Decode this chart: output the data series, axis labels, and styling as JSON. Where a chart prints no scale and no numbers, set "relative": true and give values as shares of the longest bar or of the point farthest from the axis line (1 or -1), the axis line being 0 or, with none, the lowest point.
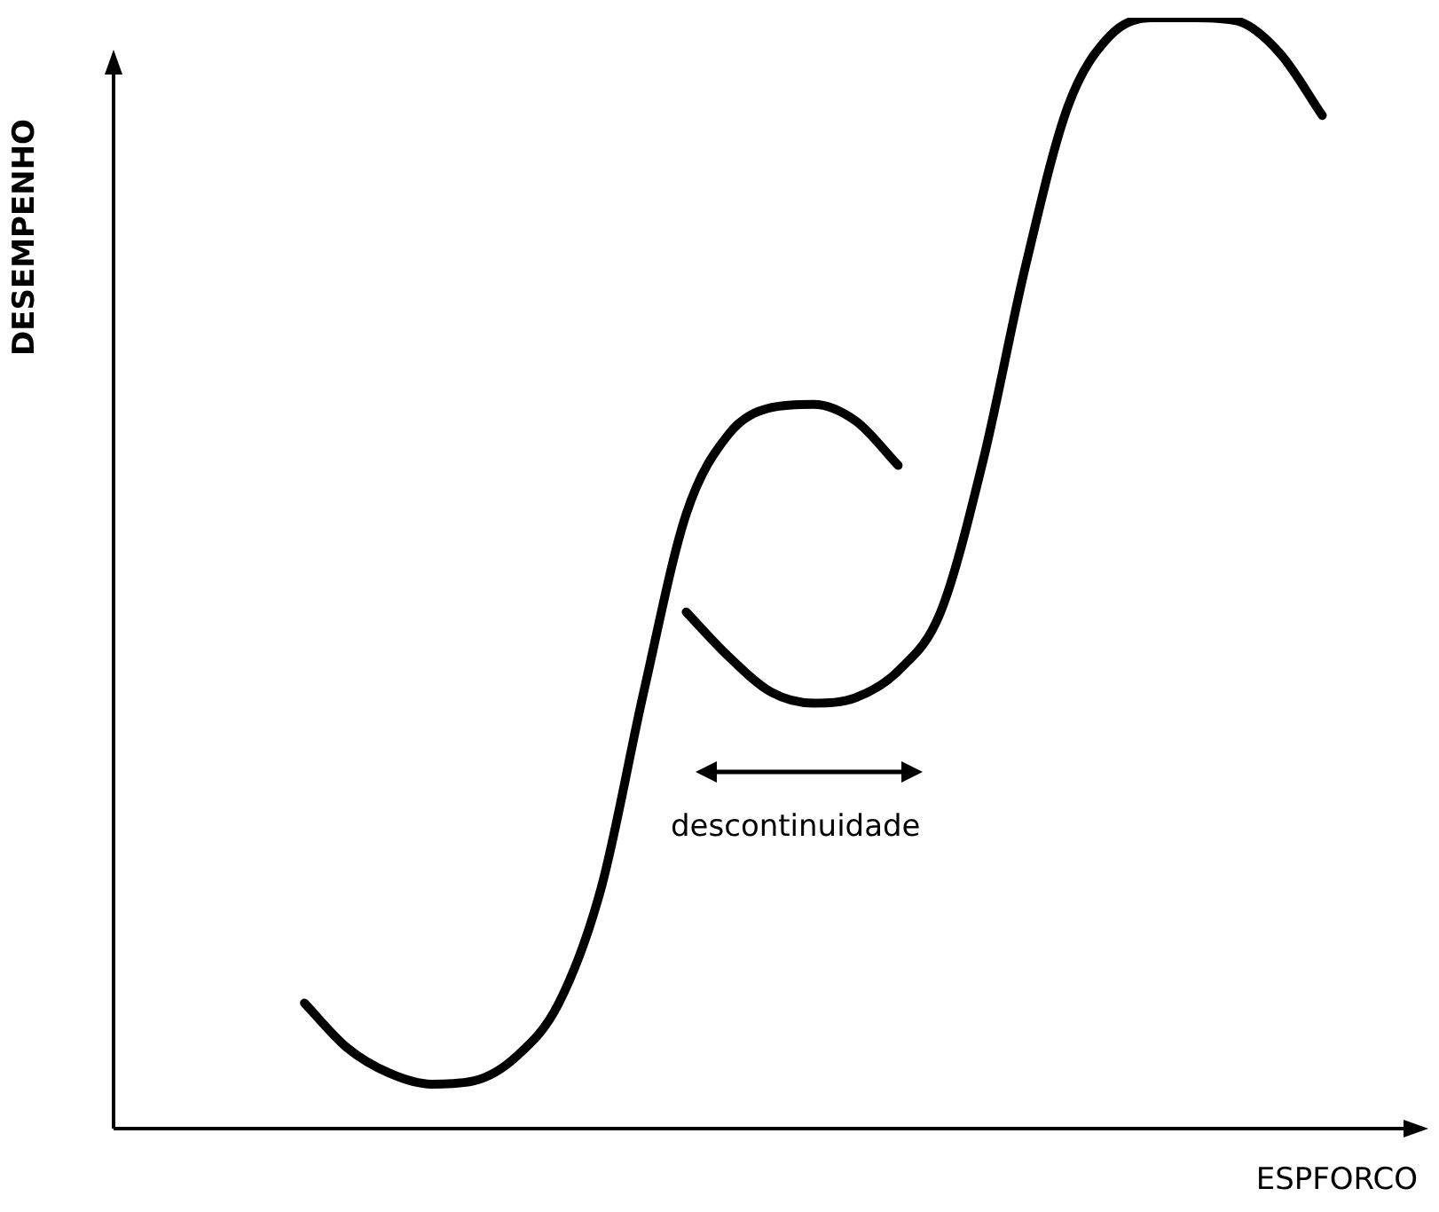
{
  "chart_data": {
    "type": "line",
    "relative": true,
    "xlabel": "ESPFORCO",
    "ylabel": "DESEMPENHO",
    "annotations": [
      "descontinuidade"
    ],
    "categories": [
      null,
      null,
      null,
      null,
      null,
      null,
      null,
      null,
      null,
      null,
      null,
      null,
      null,
      null,
      null,
      null,
      null,
      null,
      null,
      null,
      null,
      null,
      null,
      null,
      null,
      null,
      null,
      null,
      null,
      null,
      null
    ],
    "series": [
      {
        "color": "#000000",
        "values": [
          null,
          null,
          null,
          null,
          0.113,
          0.073,
          0.05,
          0.04,
          0.043,
          0.065,
          0.113,
          0.217,
          0.393,
          0.553,
          0.625,
          0.649,
          0.652,
          0.637,
          0.597,
          null,
          null,
          null,
          null,
          null,
          null,
          null,
          null,
          null,
          null,
          null,
          null
        ]
      },
      {
        "color": "#000000",
        "values": [
          null,
          null,
          null,
          null,
          null,
          null,
          null,
          null,
          null,
          null,
          null,
          null,
          null,
          0.465,
          0.425,
          0.393,
          0.383,
          0.388,
          0.412,
          0.465,
          0.601,
          0.776,
          0.92,
          0.984,
          1,
          1,
          0.997,
          0.968,
          0.912,
          null,
          null
        ]
      }
    ]
  }
}
